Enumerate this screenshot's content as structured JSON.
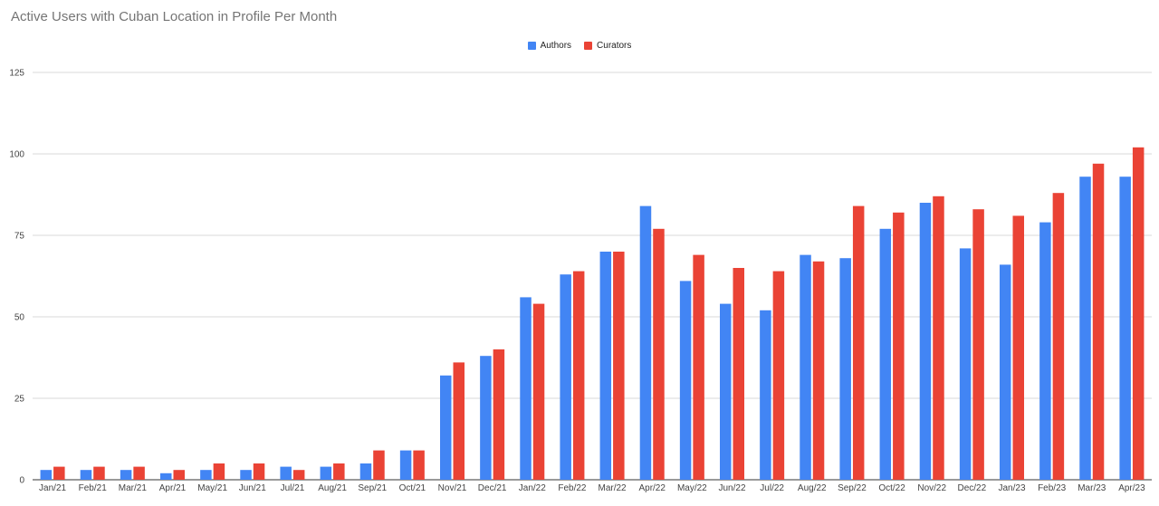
{
  "chart_data": {
    "type": "bar",
    "title": "Active Users with Cuban Location in Profile Per Month",
    "xlabel": "",
    "ylabel": "",
    "ylim": [
      0,
      125
    ],
    "yticks": [
      0,
      25,
      50,
      75,
      100,
      125
    ],
    "grid": true,
    "legend_position": "top-center",
    "categories": [
      "Jan/21",
      "Feb/21",
      "Mar/21",
      "Apr/21",
      "May/21",
      "Jun/21",
      "Jul/21",
      "Aug/21",
      "Sep/21",
      "Oct/21",
      "Nov/21",
      "Dec/21",
      "Jan/22",
      "Feb/22",
      "Mar/22",
      "Apr/22",
      "May/22",
      "Jun/22",
      "Jul/22",
      "Aug/22",
      "Sep/22",
      "Oct/22",
      "Nov/22",
      "Dec/22",
      "Jan/23",
      "Feb/23",
      "Mar/23",
      "Apr/23"
    ],
    "series": [
      {
        "name": "Authors",
        "color": "#4285f4",
        "values": [
          3,
          3,
          3,
          2,
          3,
          3,
          4,
          4,
          5,
          9,
          32,
          38,
          56,
          63,
          70,
          84,
          61,
          54,
          52,
          69,
          68,
          77,
          85,
          71,
          66,
          79,
          93,
          93
        ]
      },
      {
        "name": "Curators",
        "color": "#ea4335",
        "values": [
          4,
          4,
          4,
          3,
          5,
          5,
          3,
          5,
          9,
          9,
          36,
          40,
          54,
          64,
          70,
          77,
          69,
          65,
          64,
          67,
          84,
          82,
          87,
          83,
          81,
          88,
          97,
          102
        ]
      }
    ]
  }
}
